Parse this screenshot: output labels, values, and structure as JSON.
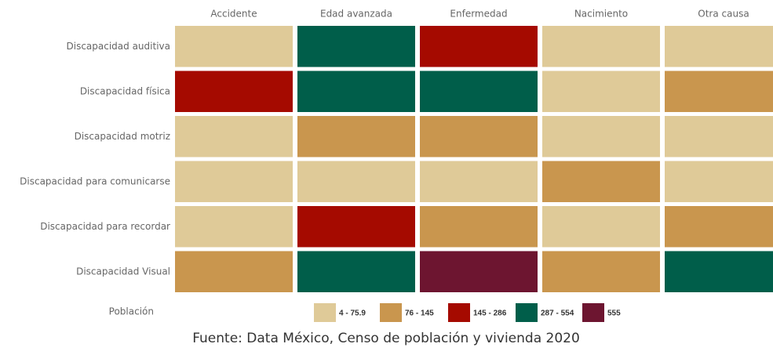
{
  "chart_data": {
    "type": "heatmap",
    "columns": [
      "Accidente",
      "Edad avanzada",
      "Enfermedad",
      "Nacimiento",
      "Otra causa"
    ],
    "rows": [
      "Discapacidad auditiva",
      "Discapacidad física",
      "Discapacidad motriz",
      "Discapacidad para comunicarse",
      "Discapacidad para recordar",
      "Discapacidad Visual"
    ],
    "values": [
      [
        40,
        400,
        200,
        40,
        40
      ],
      [
        200,
        400,
        400,
        40,
        110
      ],
      [
        40,
        110,
        110,
        40,
        40
      ],
      [
        40,
        40,
        40,
        110,
        40
      ],
      [
        40,
        200,
        110,
        40,
        110
      ],
      [
        110,
        400,
        555,
        110,
        400
      ]
    ],
    "legend_title": "Población",
    "bins": [
      {
        "label": "4 - 75.9",
        "range": [
          4,
          75.9
        ],
        "color": "#dfca98"
      },
      {
        "label": "76 - 145",
        "range": [
          76,
          145
        ],
        "color": "#c9964e"
      },
      {
        "label": "145 - 286",
        "range": [
          145,
          286
        ],
        "color": "#a50a00"
      },
      {
        "label": "287 - 554",
        "range": [
          287,
          554
        ],
        "color": "#005e4a"
      },
      {
        "label": "555",
        "range": [
          555,
          555
        ],
        "color": "#6d1530"
      }
    ],
    "source": "Fuente: Data México, Censo de población y vivienda 2020"
  }
}
